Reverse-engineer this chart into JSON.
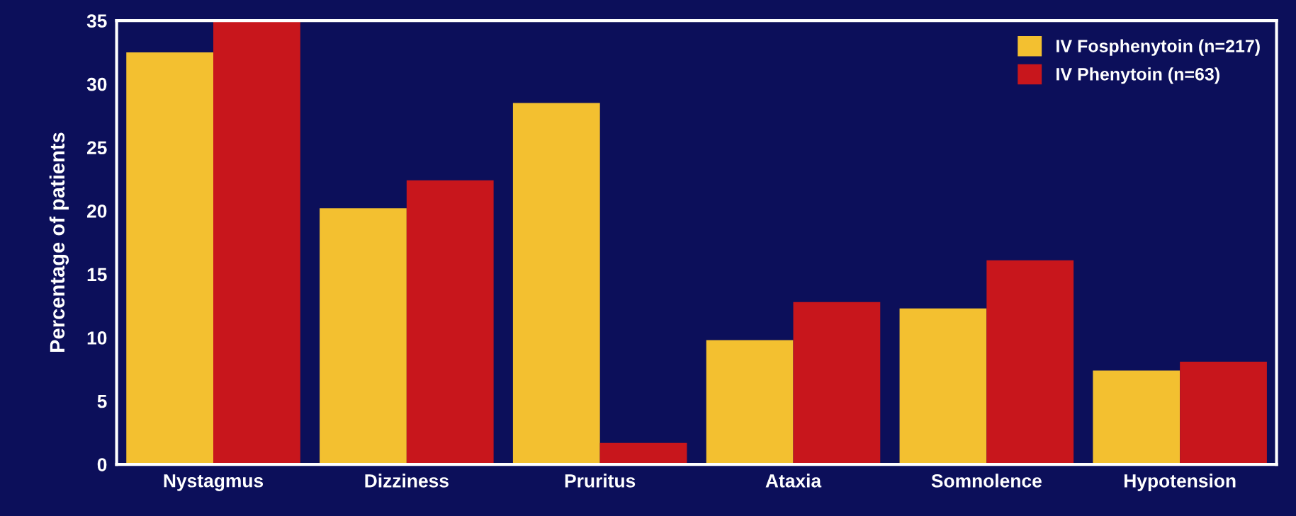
{
  "chart_data": {
    "type": "bar",
    "ylabel": "Percentage of patients",
    "categories": [
      "Nystagmus",
      "Dizziness",
      "Pruritus",
      "Ataxia",
      "Somnolence",
      "Hypotension"
    ],
    "series": [
      {
        "name": "IV Fosphenytoin (n=217)",
        "color": "#f3c030",
        "values": [
          32.5,
          20.2,
          28.5,
          9.8,
          12.3,
          7.4
        ]
      },
      {
        "name": "IV Phenytoin (n=63)",
        "color": "#c8161c",
        "values": [
          35,
          22.4,
          1.7,
          12.8,
          16.1,
          8.1
        ]
      }
    ],
    "ylim": [
      0,
      35
    ],
    "yticks": [
      0,
      5,
      10,
      15,
      20,
      25,
      30,
      35
    ],
    "grid": false,
    "legend": "top right"
  }
}
